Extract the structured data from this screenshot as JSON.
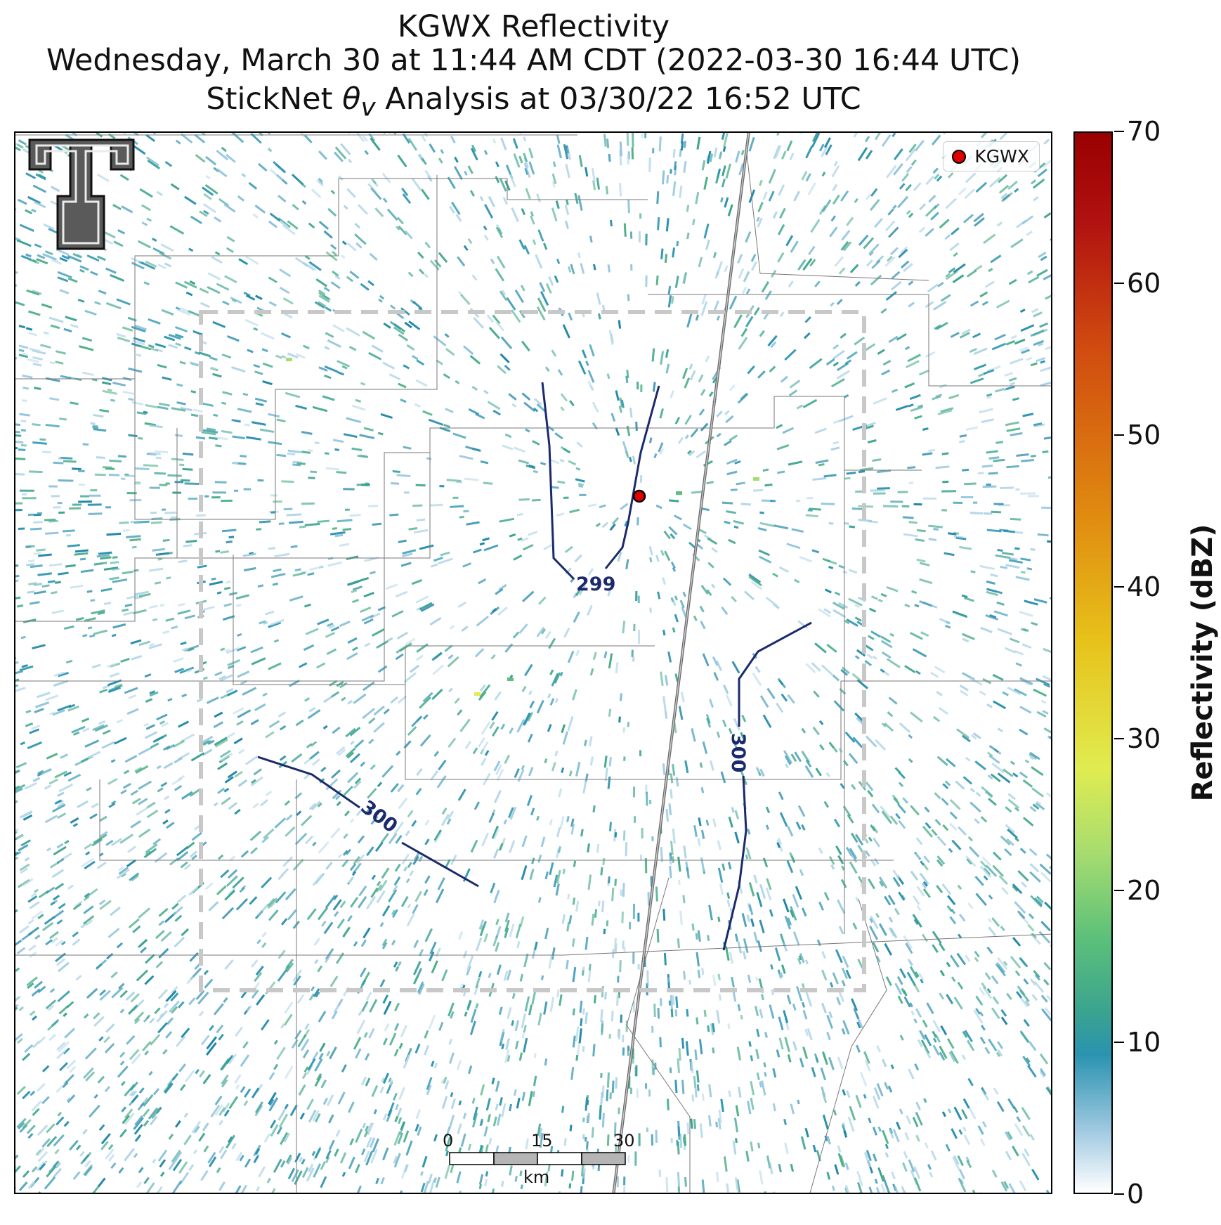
{
  "title": {
    "line1": "KGWX Reflectivity",
    "line2": "Wednesday, March 30 at 11:44 AM CDT (2022-03-30 16:44 UTC)",
    "line3_prefix": "StickNet ",
    "line3_symbol": "θ",
    "line3_subscript": "v",
    "line3_suffix": " Analysis at 03/30/22 16:52 UTC"
  },
  "legend": {
    "label": "KGWX",
    "marker_color": "#e00000"
  },
  "colorbar": {
    "label": "Reflectivity (dBZ)",
    "ticks": [
      "0",
      "10",
      "20",
      "30",
      "40",
      "50",
      "60",
      "70"
    ]
  },
  "contours": [
    {
      "label": "299"
    },
    {
      "label": "300"
    },
    {
      "label": "300"
    }
  ],
  "scale_bar": {
    "labels": [
      "0",
      "15",
      "30"
    ],
    "unit": "km"
  },
  "logo": {
    "name": "Texas Tech double T logo"
  },
  "colors": {
    "contour": "#1a2a6c",
    "analysis_box": "#c8c8c8",
    "radar_echo": "#2a93b0"
  }
}
